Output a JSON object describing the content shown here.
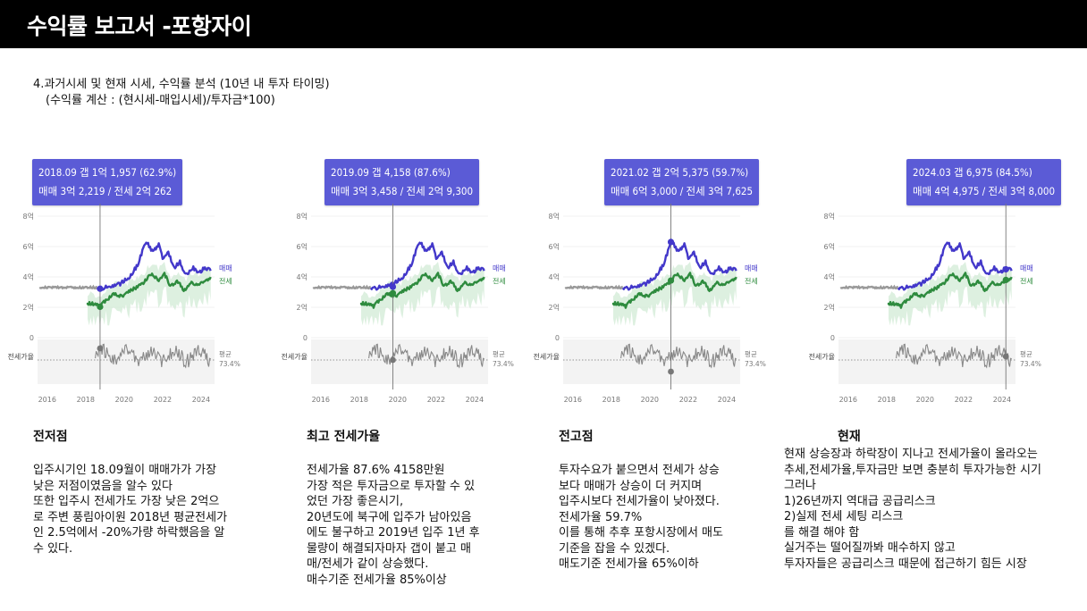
{
  "header": {
    "title": "수익률 보고서 -포항자이"
  },
  "intro": {
    "line1": "4.과거시세 및 현재 시세, 수익률 분석 (10년 내 투자 타이밍)",
    "line2": "(수익률 계산 : (현시세-매입시세)/투자금*100)"
  },
  "colors": {
    "sale": "#4338ca",
    "jeonse": "#2e8b3e",
    "tooltip": "#5b5bd6",
    "ratio": "#888888",
    "grey": "#999999"
  },
  "common": {
    "y_ticks": [
      "8억",
      "6억",
      "4억",
      "2억",
      "0"
    ],
    "x_ticks": [
      "2016",
      "2018",
      "2020",
      "2022",
      "2024"
    ],
    "legend_sale": "매매",
    "legend_jeonse": "전세",
    "ratio_label": "전세가율",
    "avg_label": "평균",
    "avg_value": "73.4%"
  },
  "chart_data": [
    {
      "type": "line",
      "tooltip_line1": "2018.09  갭 1억 1,957 (62.9%)",
      "tooltip_line2": "매매 3억 2,219 / 전세 2억 262",
      "marker_x": 2018.75,
      "marker_sale": 3.22,
      "marker_jeonse": 2.03,
      "x_range": [
        2015.5,
        2024.7
      ],
      "y_range": [
        0,
        8
      ],
      "y_unit": "억",
      "series": [
        {
          "name": "매매"
        },
        {
          "name": "전세"
        }
      ]
    },
    {
      "type": "line",
      "tooltip_line1": "2019.09  갭 4,158 (87.6%)",
      "tooltip_line2": "매매 3억 3,458 / 전세 2억 9,300",
      "marker_x": 2019.75,
      "marker_sale": 3.35,
      "marker_jeonse": 2.93,
      "x_range": [
        2015.5,
        2024.7
      ],
      "y_range": [
        0,
        8
      ],
      "y_unit": "억",
      "series": [
        {
          "name": "매매"
        },
        {
          "name": "전세"
        }
      ]
    },
    {
      "type": "line",
      "tooltip_line1": "2021.02  갭 2억 5,375 (59.7%)",
      "tooltip_line2": "매매 6억 3,000 / 전세 3억 7,625",
      "marker_x": 2021.1,
      "marker_sale": 6.3,
      "marker_jeonse": 3.76,
      "x_range": [
        2015.5,
        2024.7
      ],
      "y_range": [
        0,
        8
      ],
      "y_unit": "억",
      "series": [
        {
          "name": "매매"
        },
        {
          "name": "전세"
        }
      ]
    },
    {
      "type": "line",
      "tooltip_line1": "2024.03  갭 6,975 (84.5%)",
      "tooltip_line2": "매매 4억 4,975 / 전세 3억 8,000",
      "marker_x": 2024.2,
      "marker_sale": 4.5,
      "marker_jeonse": 3.8,
      "x_range": [
        2015.5,
        2024.7
      ],
      "y_range": [
        0,
        8
      ],
      "y_unit": "억",
      "series": [
        {
          "name": "매매"
        },
        {
          "name": "전세"
        }
      ]
    }
  ],
  "sections": [
    {
      "heading": "전저점",
      "body": "입주시기인 18.09월이 매매가가 가장\n낮은 저점이였음을 알수 있다\n또한 입주시 전세가도 가장 낮은 2억으\n로 주변 풍림아이원 2018년 평균전세가\n인 2.5억에서 -20%가량 하락했음을 알\n수 있다."
    },
    {
      "heading": "최고 전세가율",
      "body": "전세가율 87.6% 4158만원\n가장 적은 투자금으로 투자할 수 있\n었던 가장 좋은시기,\n20년도에 북구에 입주가 남아있음\n에도 불구하고 2019년 입주 1년 후\n물량이 해결되자마자 갭이 붙고 매\n매/전세가 같이 상승했다.\n매수기준 전세가율 85%이상"
    },
    {
      "heading": "전고점",
      "body": "투자수요가 붙으면서 전세가 상승\n보다 매매가 상승이 더 커지며\n입주시보다 전세가율이 낮아졌다.\n전세가율 59.7%\n이를 통해 추후 포항시장에서 매도\n기준을 잡을 수 있겠다.\n매도기준 전세가율 65%이하"
    },
    {
      "heading": "현재",
      "body": "현재 상승장과 하락장이 지나고 전세가율이 올라오는\n추세,전세가율,투자금만 보면 충분히 투자가능한 시기\n그러나\n1)26년까지 역대급 공급리스크\n2)실제 전세 세팅 리스크\n를 해결 해야 함\n실거주는 떨어질까봐 매수하지 않고\n투자자들은 공급리스크 때문에 접근하기 힘든 시장"
    }
  ]
}
